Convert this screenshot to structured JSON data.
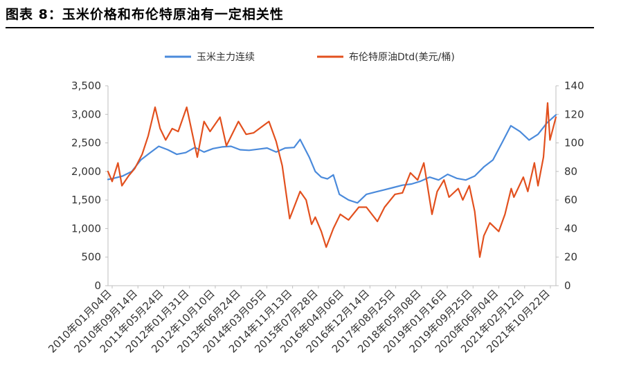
{
  "figure": {
    "title": "图表 8：玉米价格和布伦特原油有一定相关性"
  },
  "colors": {
    "corn": "#4A8ADB",
    "brent": "#E2501E",
    "axis": "#bfbfbf"
  },
  "chart_data": {
    "type": "line",
    "title": "图表 8：玉米价格和布伦特原油有一定相关性",
    "legend_position": "top-center",
    "grid": false,
    "x_ticks": [
      "2010年01月04日",
      "2010年09月14日",
      "2011年05月24日",
      "2012年01月31日",
      "2012年10月10日",
      "2013年06月24日",
      "2014年03月05日",
      "2014年11月13日",
      "2015年07月28日",
      "2016年04月06日",
      "2016年12月14日",
      "2017年08月25日",
      "2018年05月08日",
      "2019年01月16日",
      "2019年09月25日",
      "2020年06月04日",
      "2021年02月12日",
      "2021年10月22日"
    ],
    "x_range": [
      "2010-01-04",
      "2022-05-31"
    ],
    "y_left": {
      "ticks": [
        "0",
        "500",
        "1,000",
        "1,500",
        "2,000",
        "2,500",
        "3,000",
        "3,500"
      ],
      "range": [
        0,
        3500
      ]
    },
    "y_right": {
      "ticks": [
        "0",
        "20",
        "40",
        "60",
        "80",
        "100",
        "120",
        "140"
      ],
      "range": [
        0,
        140
      ]
    },
    "series": [
      {
        "name": "玉米主力连续",
        "axis": "left",
        "points": [
          [
            "2010-01-04",
            1860
          ],
          [
            "2010-03-01",
            1880
          ],
          [
            "2010-06-01",
            1920
          ],
          [
            "2010-09-01",
            2000
          ],
          [
            "2010-12-01",
            2200
          ],
          [
            "2011-03-01",
            2320
          ],
          [
            "2011-06-01",
            2440
          ],
          [
            "2011-09-01",
            2380
          ],
          [
            "2011-12-01",
            2300
          ],
          [
            "2012-03-01",
            2330
          ],
          [
            "2012-06-01",
            2420
          ],
          [
            "2012-09-01",
            2340
          ],
          [
            "2012-12-01",
            2400
          ],
          [
            "2013-03-01",
            2430
          ],
          [
            "2013-06-01",
            2440
          ],
          [
            "2013-09-01",
            2380
          ],
          [
            "2013-12-01",
            2370
          ],
          [
            "2014-03-01",
            2390
          ],
          [
            "2014-06-01",
            2410
          ],
          [
            "2014-09-01",
            2340
          ],
          [
            "2014-12-01",
            2410
          ],
          [
            "2015-03-01",
            2420
          ],
          [
            "2015-05-01",
            2560
          ],
          [
            "2015-08-01",
            2250
          ],
          [
            "2015-10-01",
            2000
          ],
          [
            "2015-12-01",
            1900
          ],
          [
            "2016-02-01",
            1870
          ],
          [
            "2016-04-01",
            1940
          ],
          [
            "2016-06-01",
            1600
          ],
          [
            "2016-09-01",
            1500
          ],
          [
            "2016-12-01",
            1450
          ],
          [
            "2017-03-01",
            1600
          ],
          [
            "2017-06-01",
            1640
          ],
          [
            "2017-09-01",
            1680
          ],
          [
            "2017-12-01",
            1720
          ],
          [
            "2018-03-01",
            1760
          ],
          [
            "2018-06-01",
            1780
          ],
          [
            "2018-09-01",
            1830
          ],
          [
            "2018-12-01",
            1900
          ],
          [
            "2019-03-01",
            1850
          ],
          [
            "2019-06-01",
            1950
          ],
          [
            "2019-09-01",
            1880
          ],
          [
            "2019-12-01",
            1850
          ],
          [
            "2020-03-01",
            1920
          ],
          [
            "2020-06-01",
            2080
          ],
          [
            "2020-09-01",
            2200
          ],
          [
            "2020-12-01",
            2500
          ],
          [
            "2021-03-01",
            2800
          ],
          [
            "2021-06-01",
            2700
          ],
          [
            "2021-09-01",
            2550
          ],
          [
            "2021-12-01",
            2650
          ],
          [
            "2022-03-01",
            2850
          ],
          [
            "2022-05-31",
            2990
          ]
        ]
      },
      {
        "name": "布伦特原油Dtd(美元/桶)",
        "axis": "right",
        "points": [
          [
            "2010-01-04",
            80
          ],
          [
            "2010-02-15",
            73
          ],
          [
            "2010-04-15",
            86
          ],
          [
            "2010-05-25",
            70
          ],
          [
            "2010-08-01",
            77
          ],
          [
            "2010-10-01",
            82
          ],
          [
            "2010-12-15",
            92
          ],
          [
            "2011-02-15",
            105
          ],
          [
            "2011-04-25",
            125
          ],
          [
            "2011-06-15",
            110
          ],
          [
            "2011-08-10",
            102
          ],
          [
            "2011-10-15",
            110
          ],
          [
            "2011-12-15",
            108
          ],
          [
            "2012-03-10",
            125
          ],
          [
            "2012-06-25",
            90
          ],
          [
            "2012-09-01",
            115
          ],
          [
            "2012-11-01",
            108
          ],
          [
            "2013-02-10",
            118
          ],
          [
            "2013-04-15",
            98
          ],
          [
            "2013-08-15",
            115
          ],
          [
            "2013-11-01",
            106
          ],
          [
            "2014-01-15",
            107
          ],
          [
            "2014-06-20",
            115
          ],
          [
            "2014-09-01",
            101
          ],
          [
            "2014-11-01",
            84
          ],
          [
            "2015-01-15",
            47
          ],
          [
            "2015-05-01",
            66
          ],
          [
            "2015-07-01",
            60
          ],
          [
            "2015-08-25",
            43
          ],
          [
            "2015-10-01",
            48
          ],
          [
            "2015-12-01",
            38
          ],
          [
            "2016-01-20",
            27
          ],
          [
            "2016-04-01",
            40
          ],
          [
            "2016-06-10",
            50
          ],
          [
            "2016-09-01",
            46
          ],
          [
            "2016-12-15",
            55
          ],
          [
            "2017-03-01",
            55
          ],
          [
            "2017-06-20",
            45
          ],
          [
            "2017-09-01",
            55
          ],
          [
            "2017-12-15",
            64
          ],
          [
            "2018-03-01",
            65
          ],
          [
            "2018-05-20",
            79
          ],
          [
            "2018-08-01",
            74
          ],
          [
            "2018-10-03",
            86
          ],
          [
            "2018-12-25",
            50
          ],
          [
            "2019-02-15",
            66
          ],
          [
            "2019-04-25",
            74
          ],
          [
            "2019-06-15",
            62
          ],
          [
            "2019-09-16",
            68
          ],
          [
            "2019-11-01",
            60
          ],
          [
            "2020-01-06",
            70
          ],
          [
            "2020-03-01",
            52
          ],
          [
            "2020-04-21",
            20
          ],
          [
            "2020-06-01",
            35
          ],
          [
            "2020-08-01",
            44
          ],
          [
            "2020-10-30",
            38
          ],
          [
            "2021-01-01",
            50
          ],
          [
            "2021-03-05",
            68
          ],
          [
            "2021-04-01",
            62
          ],
          [
            "2021-07-05",
            76
          ],
          [
            "2021-08-20",
            66
          ],
          [
            "2021-10-25",
            86
          ],
          [
            "2021-12-01",
            70
          ],
          [
            "2022-01-25",
            90
          ],
          [
            "2022-03-08",
            128
          ],
          [
            "2022-04-01",
            102
          ],
          [
            "2022-05-31",
            118
          ]
        ]
      }
    ]
  }
}
